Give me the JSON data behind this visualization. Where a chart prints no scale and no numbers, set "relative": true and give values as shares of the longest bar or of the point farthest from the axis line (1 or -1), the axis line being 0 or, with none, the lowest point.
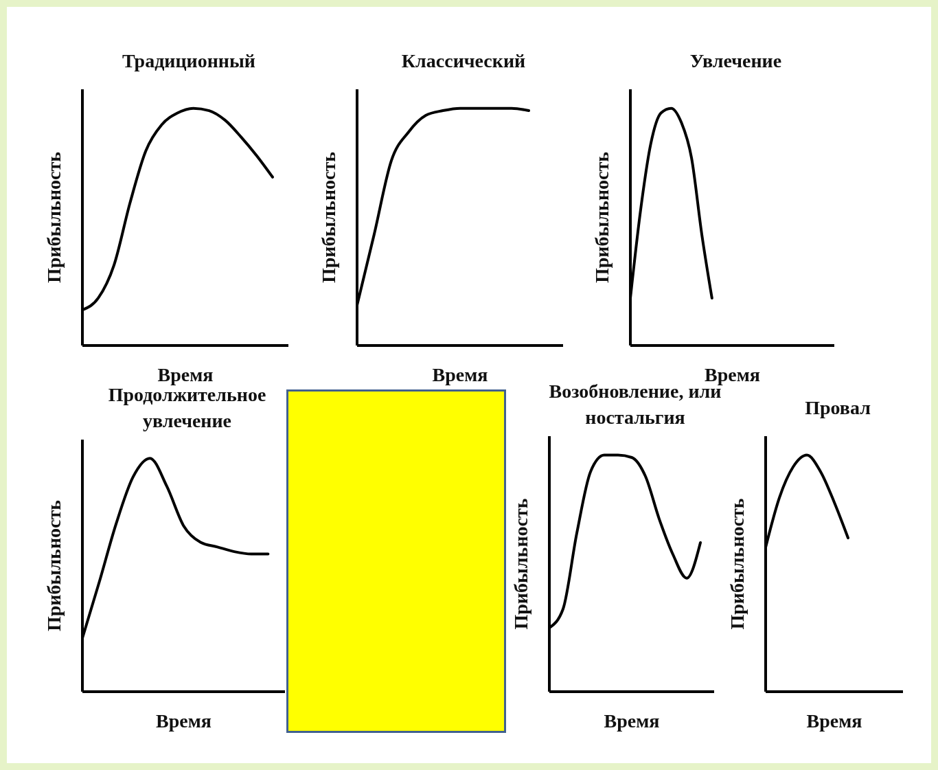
{
  "chart_data": [
    {
      "type": "line",
      "title": "Традиционный",
      "xlabel": "Время",
      "ylabel": "Прибыльность",
      "relative": true,
      "categories": [
        null,
        null,
        null,
        null,
        null,
        null,
        null,
        null,
        null,
        null,
        null,
        null,
        null,
        null
      ],
      "series": [
        {
          "color": "#000000",
          "values": [
            0.15,
            0.2,
            0.34,
            0.6,
            0.82,
            0.93,
            0.98,
            1,
            0.99,
            0.95,
            0.88,
            0.8,
            0.71,
            null
          ]
        }
      ]
    },
    {
      "type": "line",
      "title": "Классический",
      "xlabel": "Время",
      "ylabel": "Прибыльность",
      "relative": true,
      "categories": [
        null,
        null,
        null,
        null,
        null,
        null,
        null,
        null,
        null,
        null,
        null,
        null,
        null
      ],
      "series": [
        {
          "color": "#000000",
          "values": [
            0.17,
            0.47,
            0.78,
            0.9,
            0.97,
            0.99,
            1,
            1,
            1,
            1,
            0.99,
            null,
            null
          ]
        }
      ]
    },
    {
      "type": "line",
      "title": "Увлечение",
      "xlabel": "Время",
      "ylabel": "Прибыльность",
      "relative": true,
      "categories": [
        null,
        null,
        null,
        null,
        null,
        null,
        null,
        null,
        null,
        null,
        null,
        null,
        null,
        null,
        null,
        null,
        null,
        null,
        null,
        null,
        null
      ],
      "series": [
        {
          "color": "#000000",
          "values": [
            0.2,
            0.57,
            0.85,
            0.98,
            1,
            0.94,
            0.79,
            0.47,
            0.2,
            null,
            null,
            null,
            null,
            null,
            null,
            null,
            null,
            null,
            null,
            null,
            null
          ]
        }
      ]
    },
    {
      "type": "line",
      "title": "Продолжительное увлечение",
      "xlabel": "Время",
      "ylabel": "Прибыльность",
      "relative": true,
      "categories": [
        null,
        null,
        null,
        null,
        null,
        null,
        null,
        null,
        null,
        null,
        null,
        null,
        null
      ],
      "series": [
        {
          "color": "#000000",
          "values": [
            0.23,
            0.47,
            0.72,
            0.92,
            1,
            0.88,
            0.71,
            0.64,
            0.62,
            0.6,
            0.59,
            0.59,
            null
          ]
        }
      ]
    },
    {
      "type": "line",
      "title": "Возобновление, или ностальгия",
      "xlabel": "Время",
      "ylabel": "Прибыльность",
      "relative": true,
      "categories": [
        null,
        null,
        null,
        null,
        null,
        null,
        null,
        null,
        null,
        null,
        null,
        null,
        null
      ],
      "series": [
        {
          "color": "#000000",
          "values": [
            0.27,
            0.35,
            0.67,
            0.93,
            1,
            1,
            0.99,
            0.91,
            0.73,
            0.58,
            0.48,
            0.63,
            null
          ]
        }
      ]
    },
    {
      "type": "line",
      "title": "Провал",
      "xlabel": "Время",
      "ylabel": "Прибыльность",
      "relative": true,
      "categories": [
        null,
        null,
        null,
        null,
        null,
        null,
        null,
        null,
        null,
        null,
        null
      ],
      "series": [
        {
          "color": "#000000",
          "values": [
            0.61,
            0.82,
            0.95,
            1,
            0.93,
            0.8,
            0.65,
            null,
            null,
            null,
            null
          ]
        }
      ]
    }
  ]
}
